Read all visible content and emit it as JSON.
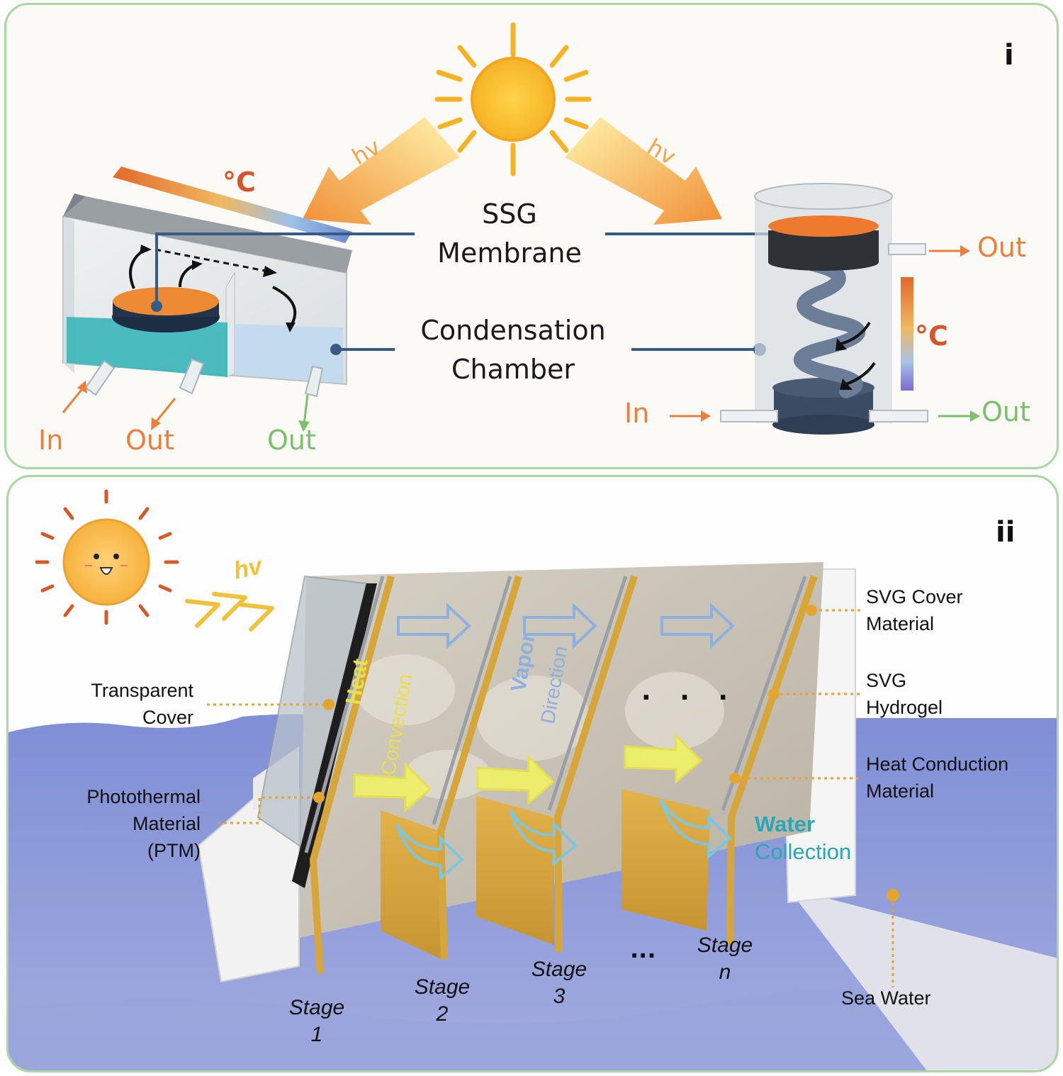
{
  "panel_i": {
    "label": "i",
    "hv_left": "hv",
    "hv_right": "hv",
    "temp_left": "°C",
    "temp_right": "°C",
    "ssg_line1": "SSG",
    "ssg_line2": "Membrane",
    "cond_line1": "Condensation",
    "cond_line2": "Chamber",
    "left_in": "In",
    "left_out": "Out",
    "left_out_green": "Out",
    "right_out_top": "Out",
    "right_in": "In",
    "right_out_bottom": "Out"
  },
  "panel_ii": {
    "label": "ii",
    "hv": "hv",
    "transparent_cover_1": "Transparent",
    "transparent_cover_2": "Cover",
    "ptm_1": "Photothermal",
    "ptm_2": "Material",
    "ptm_3": "(PTM)",
    "svg_cover_1": "SVG Cover",
    "svg_cover_2": "Material",
    "svg_hydrogel_1": "SVG",
    "svg_hydrogel_2": "Hydrogel",
    "heat_cond_1": "Heat Conduction",
    "heat_cond_2": "Material",
    "sea_water": "Sea Water",
    "heat_word": "Heat",
    "convection_word": "Convection",
    "vapor_word": "Vapor",
    "direction_word": "Direction",
    "water_word": "Water",
    "collection_word": "Collection",
    "stage1_a": "Stage",
    "stage1_b": "1",
    "stage2_a": "Stage",
    "stage2_b": "2",
    "stage3_a": "Stage",
    "stage3_b": "3",
    "stagen_a": "Stage",
    "stagen_b": "n",
    "ellipsis_bottom": "...",
    "ellipsis_middle": ". . ."
  },
  "colors": {
    "panel_border": "#a8d8a0",
    "orange": "#ee7f3a",
    "green": "#7cc06b",
    "gold": "#e3b24a",
    "sea": "#8a97d6",
    "water_teal": "#2aa7b4"
  }
}
